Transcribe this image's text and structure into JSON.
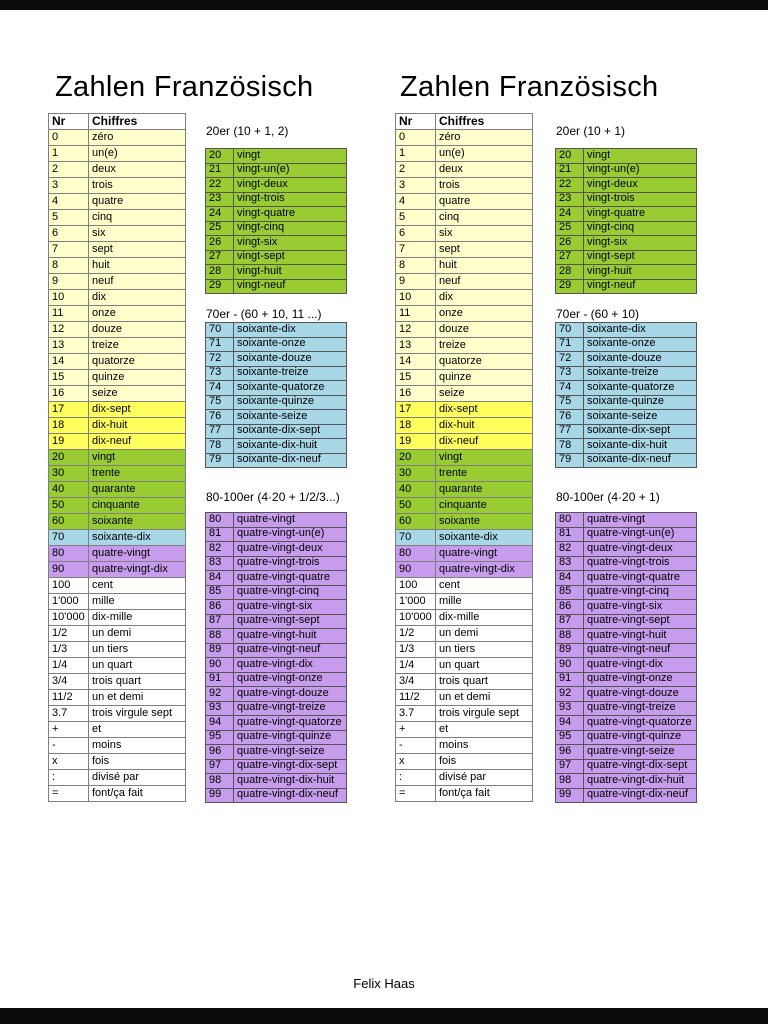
{
  "footer": "Felix Haas",
  "colors": {
    "cream": "#FFFFCC",
    "yellow": "#FFFF5E",
    "green": "#99CC33",
    "blue": "#A8D7E8",
    "purple": "#C89CEC",
    "white": "#FFFFFF"
  },
  "columns": {
    "left": {
      "title": "Zahlen Französisch",
      "headings": [
        "20er (10 + 1, 2)",
        "70er - (60 + 10, 11 ...)",
        "80-100er (4·20 + 1/2/3...)"
      ]
    },
    "right": {
      "title": "Zahlen Französisch",
      "headings": [
        "20er (10 + 1)",
        "70er - (60 + 10)",
        "80-100er (4·20 + 1)"
      ]
    }
  },
  "main_table": {
    "headers": [
      "Nr",
      "Chiffres"
    ],
    "rows": [
      [
        "0",
        "zéro",
        "cream"
      ],
      [
        "1",
        "un(e)",
        "cream"
      ],
      [
        "2",
        "deux",
        "cream"
      ],
      [
        "3",
        "trois",
        "cream"
      ],
      [
        "4",
        "quatre",
        "cream"
      ],
      [
        "5",
        "cinq",
        "cream"
      ],
      [
        "6",
        "six",
        "cream"
      ],
      [
        "7",
        "sept",
        "cream"
      ],
      [
        "8",
        "huit",
        "cream"
      ],
      [
        "9",
        "neuf",
        "cream"
      ],
      [
        "10",
        "dix",
        "cream"
      ],
      [
        "11",
        "onze",
        "cream"
      ],
      [
        "12",
        "douze",
        "cream"
      ],
      [
        "13",
        "treize",
        "cream"
      ],
      [
        "14",
        "quatorze",
        "cream"
      ],
      [
        "15",
        "quinze",
        "cream"
      ],
      [
        "16",
        "seize",
        "cream"
      ],
      [
        "17",
        "dix-sept",
        "yellow"
      ],
      [
        "18",
        "dix-huit",
        "yellow"
      ],
      [
        "19",
        "dix-neuf",
        "yellow"
      ],
      [
        "20",
        "vingt",
        "green"
      ],
      [
        "30",
        "trente",
        "green"
      ],
      [
        "40",
        "quarante",
        "green"
      ],
      [
        "50",
        "cinquante",
        "green"
      ],
      [
        "60",
        "soixante",
        "green"
      ],
      [
        "70",
        "soixante-dix",
        "blue"
      ],
      [
        "80",
        "quatre-vingt",
        "purple"
      ],
      [
        "90",
        "quatre-vingt-dix",
        "purple"
      ],
      [
        "100",
        "cent",
        "white"
      ],
      [
        "1'000",
        "mille",
        "white"
      ],
      [
        "10'000",
        "dix-mille",
        "white"
      ],
      [
        "1/2",
        "un demi",
        "white"
      ],
      [
        "1/3",
        "un tiers",
        "white"
      ],
      [
        "1/4",
        "un quart",
        "white"
      ],
      [
        "3/4",
        "trois quart",
        "white"
      ],
      [
        "11/2",
        "un et demi",
        "white"
      ],
      [
        "3.7",
        "trois virgule sept",
        "white"
      ],
      [
        "+",
        "et",
        "white"
      ],
      [
        "-",
        "moins",
        "white"
      ],
      [
        "x",
        "fois",
        "white"
      ],
      [
        ":",
        "divisé par",
        "white"
      ],
      [
        "=",
        "font/ça fait",
        "white"
      ]
    ]
  },
  "sub_tables": {
    "twenties": {
      "color": "green",
      "rows": [
        [
          "20",
          "vingt"
        ],
        [
          "21",
          "vingt-un(e)"
        ],
        [
          "22",
          "vingt-deux"
        ],
        [
          "23",
          "vingt-trois"
        ],
        [
          "24",
          "vingt-quatre"
        ],
        [
          "25",
          "vingt-cinq"
        ],
        [
          "26",
          "vingt-six"
        ],
        [
          "27",
          "vingt-sept"
        ],
        [
          "28",
          "vingt-huit"
        ],
        [
          "29",
          "vingt-neuf"
        ]
      ]
    },
    "seventies": {
      "color": "blue",
      "rows": [
        [
          "70",
          "soixante-dix"
        ],
        [
          "71",
          "soixante-onze"
        ],
        [
          "72",
          "soixante-douze"
        ],
        [
          "73",
          "soixante-treize"
        ],
        [
          "74",
          "soixante-quatorze"
        ],
        [
          "75",
          "soixante-quinze"
        ],
        [
          "76",
          "soixante-seize"
        ],
        [
          "77",
          "soixante-dix-sept"
        ],
        [
          "78",
          "soixante-dix-huit"
        ],
        [
          "79",
          "soixante-dix-neuf"
        ]
      ]
    },
    "eighties": {
      "color": "purple",
      "rows": [
        [
          "80",
          "quatre-vingt"
        ],
        [
          "81",
          "quatre-vingt-un(e)"
        ],
        [
          "82",
          "quatre-vingt-deux"
        ],
        [
          "83",
          "quatre-vingt-trois"
        ],
        [
          "84",
          "quatre-vingt-quatre"
        ],
        [
          "85",
          "quatre-vingt-cinq"
        ],
        [
          "86",
          "quatre-vingt-six"
        ],
        [
          "87",
          "quatre-vingt-sept"
        ],
        [
          "88",
          "quatre-vingt-huit"
        ],
        [
          "89",
          "quatre-vingt-neuf"
        ],
        [
          "90",
          "quatre-vingt-dix"
        ],
        [
          "91",
          "quatre-vingt-onze"
        ],
        [
          "92",
          "quatre-vingt-douze"
        ],
        [
          "93",
          "quatre-vingt-treize"
        ],
        [
          "94",
          "quatre-vingt-quatorze"
        ],
        [
          "95",
          "quatre-vingt-quinze"
        ],
        [
          "96",
          "quatre-vingt-seize"
        ],
        [
          "97",
          "quatre-vingt-dix-sept"
        ],
        [
          "98",
          "quatre-vingt-dix-huit"
        ],
        [
          "99",
          "quatre-vingt-dix-neuf"
        ]
      ]
    }
  }
}
